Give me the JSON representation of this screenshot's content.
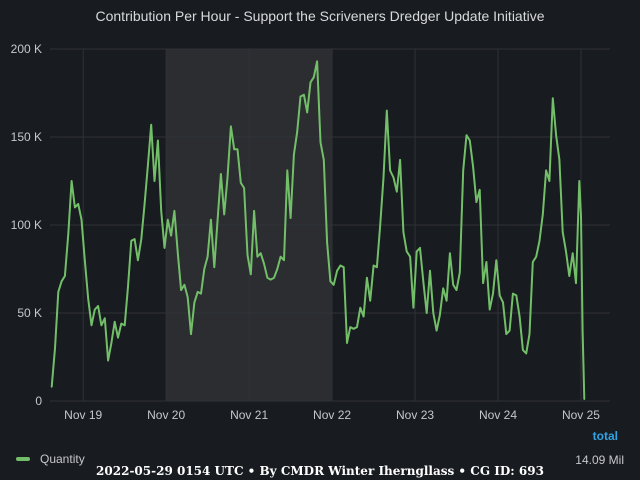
{
  "panel": {
    "title": "Contribution Per Hour - Support the Scriveners Dredger Update Initiative"
  },
  "legend": {
    "header": "total",
    "series_name": "Quantity",
    "series_total": "14.09 Mil"
  },
  "footer": {
    "text": "2022-05-29 0154 UTC • By CMDR Winter Iherngllass • CG ID: 693"
  },
  "colors": {
    "background": "#181b1f",
    "series": "#73bf69",
    "highlight": "#2b2d31",
    "legend_header": "#33a2e5"
  },
  "chart_data": {
    "type": "line",
    "title": "Contribution Per Hour - Support the Scriveners Dredger Update Initiative",
    "xlabel": "",
    "ylabel": "",
    "x_range_days": [
      18.6,
      25.35
    ],
    "ylim": [
      0,
      200000
    ],
    "y_ticks": [
      0,
      50000,
      100000,
      150000,
      200000
    ],
    "y_tick_labels": [
      "0",
      "50 K",
      "100 K",
      "150 K",
      "200 K"
    ],
    "x_ticks": [
      19,
      20,
      21,
      22,
      23,
      24,
      25
    ],
    "x_tick_labels": [
      "Nov 19",
      "Nov 20",
      "Nov 21",
      "Nov 22",
      "Nov 23",
      "Nov 24",
      "Nov 25"
    ],
    "highlight_range": [
      20,
      22
    ],
    "grid": true,
    "legend_position": "bottom-left",
    "series": [
      {
        "name": "Quantity",
        "color": "#73bf69",
        "points": [
          [
            18.62,
            8000
          ],
          [
            18.66,
            30000
          ],
          [
            18.7,
            62000
          ],
          [
            18.74,
            68000
          ],
          [
            18.78,
            71000
          ],
          [
            18.82,
            95000
          ],
          [
            18.86,
            125000
          ],
          [
            18.9,
            110000
          ],
          [
            18.94,
            112000
          ],
          [
            18.98,
            103000
          ],
          [
            19.02,
            80000
          ],
          [
            19.06,
            58000
          ],
          [
            19.1,
            43000
          ],
          [
            19.14,
            52000
          ],
          [
            19.18,
            54000
          ],
          [
            19.22,
            43000
          ],
          [
            19.26,
            47000
          ],
          [
            19.3,
            23000
          ],
          [
            19.34,
            33000
          ],
          [
            19.38,
            45000
          ],
          [
            19.42,
            36000
          ],
          [
            19.46,
            44000
          ],
          [
            19.5,
            43000
          ],
          [
            19.54,
            65000
          ],
          [
            19.58,
            91000
          ],
          [
            19.62,
            92000
          ],
          [
            19.66,
            80000
          ],
          [
            19.7,
            92000
          ],
          [
            19.74,
            112000
          ],
          [
            19.78,
            134000
          ],
          [
            19.82,
            157000
          ],
          [
            19.86,
            125000
          ],
          [
            19.9,
            148000
          ],
          [
            19.94,
            108000
          ],
          [
            19.98,
            87000
          ],
          [
            20.02,
            103000
          ],
          [
            20.06,
            94000
          ],
          [
            20.1,
            108000
          ],
          [
            20.14,
            84000
          ],
          [
            20.18,
            63000
          ],
          [
            20.22,
            66000
          ],
          [
            20.26,
            59000
          ],
          [
            20.3,
            38000
          ],
          [
            20.34,
            56000
          ],
          [
            20.38,
            62000
          ],
          [
            20.42,
            61000
          ],
          [
            20.46,
            75000
          ],
          [
            20.5,
            82000
          ],
          [
            20.54,
            103000
          ],
          [
            20.58,
            76000
          ],
          [
            20.62,
            103000
          ],
          [
            20.66,
            129000
          ],
          [
            20.7,
            106000
          ],
          [
            20.74,
            127000
          ],
          [
            20.78,
            156000
          ],
          [
            20.82,
            143000
          ],
          [
            20.86,
            143000
          ],
          [
            20.9,
            124000
          ],
          [
            20.94,
            121000
          ],
          [
            20.98,
            83000
          ],
          [
            21.02,
            72000
          ],
          [
            21.06,
            108000
          ],
          [
            21.1,
            82000
          ],
          [
            21.14,
            84000
          ],
          [
            21.18,
            78000
          ],
          [
            21.22,
            70000
          ],
          [
            21.26,
            69000
          ],
          [
            21.3,
            70000
          ],
          [
            21.34,
            75000
          ],
          [
            21.38,
            82000
          ],
          [
            21.42,
            80000
          ],
          [
            21.46,
            131000
          ],
          [
            21.5,
            104000
          ],
          [
            21.54,
            140000
          ],
          [
            21.58,
            153000
          ],
          [
            21.62,
            173000
          ],
          [
            21.66,
            174000
          ],
          [
            21.7,
            164000
          ],
          [
            21.74,
            181000
          ],
          [
            21.78,
            184000
          ],
          [
            21.82,
            193000
          ],
          [
            21.86,
            147000
          ],
          [
            21.9,
            137000
          ],
          [
            21.94,
            90000
          ],
          [
            21.98,
            68000
          ],
          [
            22.02,
            66000
          ],
          [
            22.06,
            74000
          ],
          [
            22.1,
            77000
          ],
          [
            22.14,
            76000
          ],
          [
            22.18,
            33000
          ],
          [
            22.22,
            42000
          ],
          [
            22.26,
            41000
          ],
          [
            22.3,
            42000
          ],
          [
            22.34,
            53000
          ],
          [
            22.38,
            48000
          ],
          [
            22.42,
            70000
          ],
          [
            22.46,
            57000
          ],
          [
            22.5,
            77000
          ],
          [
            22.54,
            76000
          ],
          [
            22.58,
            100000
          ],
          [
            22.62,
            127000
          ],
          [
            22.66,
            165000
          ],
          [
            22.7,
            131000
          ],
          [
            22.74,
            127000
          ],
          [
            22.78,
            119000
          ],
          [
            22.82,
            137000
          ],
          [
            22.86,
            96000
          ],
          [
            22.9,
            85000
          ],
          [
            22.94,
            82000
          ],
          [
            22.98,
            53000
          ],
          [
            23.02,
            85000
          ],
          [
            23.06,
            87000
          ],
          [
            23.1,
            68000
          ],
          [
            23.14,
            50000
          ],
          [
            23.18,
            74000
          ],
          [
            23.22,
            50000
          ],
          [
            23.26,
            40000
          ],
          [
            23.3,
            49000
          ],
          [
            23.34,
            64000
          ],
          [
            23.38,
            57000
          ],
          [
            23.42,
            84000
          ],
          [
            23.46,
            66000
          ],
          [
            23.5,
            63000
          ],
          [
            23.54,
            73000
          ],
          [
            23.58,
            131000
          ],
          [
            23.62,
            151000
          ],
          [
            23.66,
            148000
          ],
          [
            23.7,
            133000
          ],
          [
            23.74,
            113000
          ],
          [
            23.78,
            120000
          ],
          [
            23.82,
            67000
          ],
          [
            23.86,
            79000
          ],
          [
            23.9,
            52000
          ],
          [
            23.94,
            61000
          ],
          [
            23.98,
            80000
          ],
          [
            24.02,
            60000
          ],
          [
            24.06,
            56000
          ],
          [
            24.1,
            38000
          ],
          [
            24.14,
            40000
          ],
          [
            24.18,
            61000
          ],
          [
            24.22,
            60000
          ],
          [
            24.26,
            48000
          ],
          [
            24.3,
            29000
          ],
          [
            24.34,
            27000
          ],
          [
            24.38,
            38000
          ],
          [
            24.42,
            79000
          ],
          [
            24.46,
            82000
          ],
          [
            24.5,
            91000
          ],
          [
            24.54,
            106000
          ],
          [
            24.58,
            131000
          ],
          [
            24.62,
            125000
          ],
          [
            24.66,
            172000
          ],
          [
            24.7,
            151000
          ],
          [
            24.74,
            137000
          ],
          [
            24.78,
            96000
          ],
          [
            24.82,
            85000
          ],
          [
            24.86,
            71000
          ],
          [
            24.9,
            84000
          ],
          [
            24.94,
            67000
          ],
          [
            24.98,
            125000
          ],
          [
            25.0,
            105000
          ],
          [
            25.02,
            40000
          ],
          [
            25.04,
            1000
          ]
        ]
      }
    ]
  }
}
